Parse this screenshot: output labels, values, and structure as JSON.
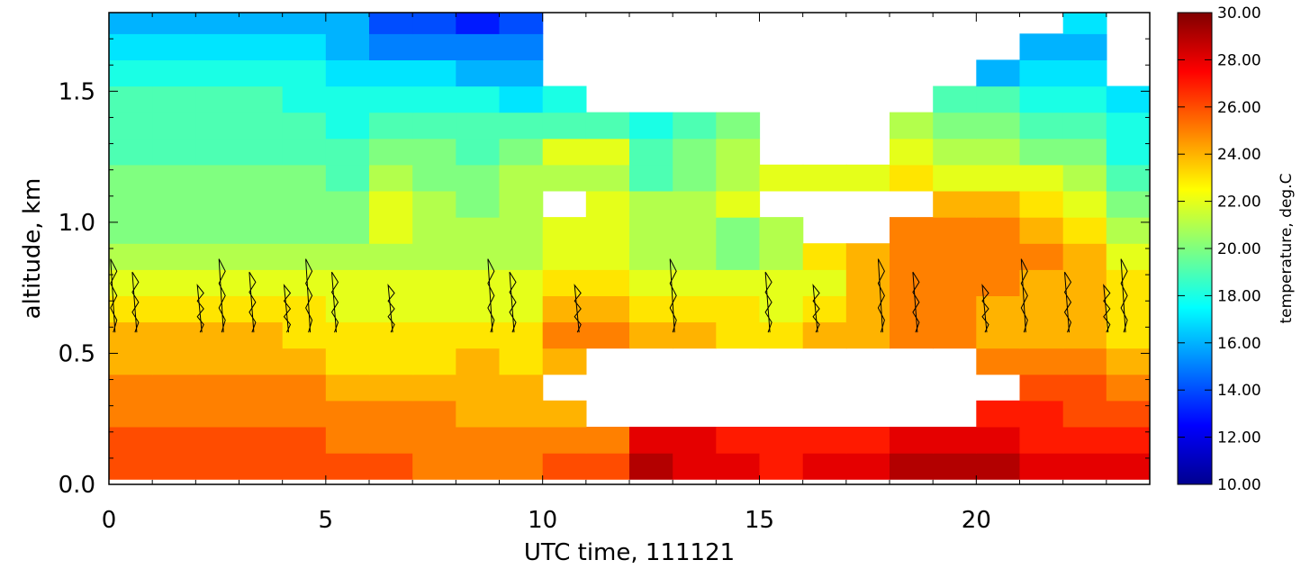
{
  "chart_data": {
    "type": "heatmap",
    "xlabel": "UTC time, 111121",
    "ylabel": "altitude, km",
    "colorbar_label": "temperature, deg.C",
    "xlim": [
      0,
      24
    ],
    "ylim": [
      0.0,
      1.8
    ],
    "x_ticks": [
      "0",
      "5",
      "10",
      "15",
      "20"
    ],
    "x_tick_values": [
      0,
      5,
      10,
      15,
      20
    ],
    "y_ticks": [
      "0.0",
      "0.5",
      "1.0",
      "1.5"
    ],
    "y_tick_values": [
      0.0,
      0.5,
      1.0,
      1.5
    ],
    "colorbar_ticks": [
      "30.00",
      "28.00",
      "26.00",
      "24.00",
      "22.00",
      "20.00",
      "18.00",
      "16.00",
      "14.00",
      "12.00",
      "10.00"
    ],
    "colorbar_range": [
      10,
      30
    ],
    "colormap": "jet",
    "grid": false,
    "heatmap_x": [
      0,
      1,
      2,
      3,
      4,
      5,
      6,
      7,
      8,
      9,
      10,
      11,
      12,
      13,
      14,
      15,
      16,
      17,
      18,
      19,
      20,
      21,
      22,
      23
    ],
    "heatmap_y": [
      0.07,
      0.17,
      0.27,
      0.37,
      0.47,
      0.57,
      0.67,
      0.77,
      0.87,
      0.97,
      1.07,
      1.17,
      1.27,
      1.37,
      1.47,
      1.57,
      1.67,
      1.77
    ],
    "heatmap_values": [
      [
        26,
        26,
        26,
        26,
        26,
        26,
        26,
        25,
        25,
        25,
        26,
        26,
        29,
        28,
        28,
        27,
        28,
        28,
        29,
        29,
        29,
        28,
        28,
        28
      ],
      [
        26,
        26,
        26,
        26,
        26,
        25,
        25,
        25,
        25,
        25,
        25,
        25,
        28,
        28,
        27,
        27,
        27,
        27,
        28,
        28,
        28,
        27,
        27,
        27
      ],
      [
        25,
        25,
        25,
        25,
        25,
        25,
        25,
        25,
        24,
        24,
        24,
        null,
        null,
        null,
        null,
        null,
        null,
        null,
        null,
        null,
        27,
        27,
        26,
        26
      ],
      [
        25,
        25,
        25,
        25,
        25,
        24,
        24,
        24,
        24,
        24,
        null,
        null,
        null,
        null,
        null,
        null,
        null,
        null,
        null,
        null,
        null,
        26,
        26,
        25
      ],
      [
        24,
        24,
        24,
        24,
        24,
        23,
        23,
        23,
        24,
        23,
        24,
        null,
        null,
        null,
        null,
        null,
        null,
        null,
        null,
        null,
        25,
        25,
        25,
        24
      ],
      [
        24,
        24,
        24,
        24,
        23,
        23,
        23,
        23,
        23,
        23,
        25,
        25,
        24,
        24,
        23,
        23,
        24,
        24,
        25,
        25,
        24,
        24,
        24,
        23
      ],
      [
        23,
        23,
        23,
        23,
        23,
        22,
        22,
        22,
        22,
        22,
        24,
        24,
        23,
        23,
        23,
        22,
        23,
        24,
        25,
        25,
        24,
        24,
        24,
        23
      ],
      [
        22,
        22,
        22,
        22,
        22,
        22,
        22,
        22,
        22,
        22,
        23,
        23,
        22,
        22,
        22,
        22,
        22,
        24,
        25,
        25,
        25,
        24,
        24,
        23
      ],
      [
        21,
        21,
        21,
        21,
        21,
        21,
        21,
        21,
        21,
        21,
        22,
        22,
        21,
        21,
        20,
        21,
        23,
        24,
        25,
        25,
        25,
        25,
        24,
        22
      ],
      [
        20,
        20,
        20,
        20,
        20,
        20,
        22,
        21,
        21,
        21,
        22,
        22,
        21,
        21,
        20,
        21,
        null,
        null,
        25,
        25,
        25,
        24,
        23,
        21
      ],
      [
        20,
        20,
        20,
        20,
        20,
        20,
        22,
        21,
        20,
        21,
        null,
        22,
        21,
        21,
        22,
        null,
        null,
        null,
        null,
        24,
        24,
        23,
        22,
        20
      ],
      [
        20,
        20,
        20,
        20,
        20,
        19,
        21,
        20,
        20,
        21,
        21,
        21,
        19,
        20,
        21,
        22,
        22,
        22,
        23,
        22,
        22,
        22,
        21,
        19
      ],
      [
        19,
        19,
        19,
        19,
        19,
        19,
        20,
        20,
        19,
        20,
        22,
        22,
        19,
        20,
        21,
        null,
        null,
        null,
        22,
        21,
        21,
        20,
        20,
        18
      ],
      [
        19,
        19,
        19,
        19,
        19,
        18,
        19,
        19,
        19,
        19,
        19,
        19,
        18,
        19,
        20,
        null,
        null,
        null,
        21,
        20,
        20,
        19,
        19,
        18
      ],
      [
        19,
        19,
        19,
        19,
        18,
        18,
        18,
        18,
        18,
        17,
        18,
        null,
        null,
        null,
        null,
        null,
        null,
        null,
        null,
        19,
        19,
        18,
        18,
        17
      ],
      [
        18,
        18,
        18,
        18,
        18,
        17,
        17,
        17,
        16,
        16,
        null,
        null,
        null,
        null,
        null,
        null,
        null,
        null,
        null,
        null,
        16,
        17,
        17,
        null
      ],
      [
        17,
        17,
        17,
        17,
        17,
        16,
        15,
        15,
        15,
        15,
        null,
        null,
        null,
        null,
        null,
        null,
        null,
        null,
        null,
        null,
        null,
        16,
        16,
        null
      ],
      [
        16,
        16,
        16,
        16,
        16,
        16,
        14,
        14,
        13,
        14,
        null,
        null,
        null,
        null,
        null,
        null,
        null,
        null,
        null,
        null,
        null,
        null,
        17,
        null
      ]
    ]
  }
}
